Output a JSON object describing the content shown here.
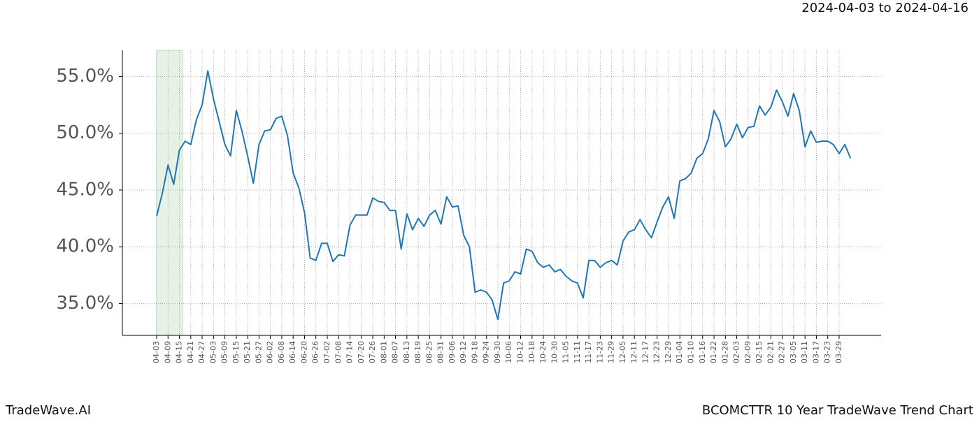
{
  "header": {
    "date_range": "2024-04-03 to 2024-04-16"
  },
  "footer": {
    "brand": "TradeWave.AI",
    "chart_name": "BCOMCTTR 10 Year TradeWave Trend Chart"
  },
  "chart_data": {
    "type": "line",
    "color": "#1f77b4",
    "grid": true,
    "shaded_span": {
      "start": "04-03",
      "end": "04-15",
      "color": "#e6f2e6"
    },
    "categories": [
      "04-03",
      null,
      "04-09",
      null,
      "04-15",
      null,
      "04-21",
      null,
      "04-27",
      null,
      "05-03",
      null,
      "05-09",
      null,
      "05-15",
      null,
      "05-21",
      null,
      "05-27",
      null,
      "06-02",
      null,
      "06-08",
      null,
      "06-14",
      null,
      "06-20",
      null,
      "06-26",
      null,
      "07-02",
      null,
      "07-08",
      null,
      "07-14",
      null,
      "07-20",
      null,
      "07-26",
      null,
      "08-01",
      null,
      "08-07",
      null,
      "08-13",
      null,
      "08-19",
      null,
      "08-25",
      null,
      "08-31",
      null,
      "09-06",
      null,
      "09-12",
      null,
      "09-18",
      null,
      "09-24",
      null,
      "09-30",
      null,
      "10-06",
      null,
      "10-12",
      null,
      "10-18",
      null,
      "10-24",
      null,
      "10-30",
      null,
      "11-05",
      null,
      "11-11",
      null,
      "11-17",
      null,
      "11-23",
      null,
      "11-29",
      null,
      "12-05",
      null,
      "12-11",
      null,
      "12-17",
      null,
      "12-23",
      null,
      "12-29",
      null,
      "01-04",
      null,
      "01-10",
      null,
      "01-16",
      null,
      "01-22",
      null,
      "01-28",
      null,
      "02-03",
      null,
      "02-09",
      null,
      "02-15",
      null,
      "02-21",
      null,
      "02-27",
      null,
      "03-05",
      null,
      "03-11",
      null,
      "03-17",
      null,
      "03-23",
      null,
      "03-29",
      null,
      null
    ],
    "values": [
      42.7,
      44.7,
      47.2,
      45.5,
      48.5,
      49.3,
      49.0,
      51.2,
      52.5,
      55.5,
      53.0,
      51.0,
      49.0,
      48.0,
      52.0,
      50.2,
      48.0,
      45.6,
      49.0,
      50.2,
      50.3,
      51.3,
      51.5,
      49.8,
      46.5,
      45.2,
      43.0,
      39.0,
      38.8,
      40.3,
      40.3,
      38.7,
      39.3,
      39.2,
      41.9,
      42.8,
      42.8,
      42.8,
      44.3,
      44.0,
      43.9,
      43.2,
      43.2,
      39.8,
      42.9,
      41.5,
      42.5,
      41.8,
      42.8,
      43.2,
      42.0,
      44.4,
      43.5,
      43.6,
      41.0,
      40.0,
      36.0,
      36.2,
      36.0,
      35.3,
      33.6,
      36.8,
      37.0,
      37.8,
      37.6,
      39.8,
      39.6,
      38.6,
      38.2,
      38.4,
      37.8,
      38.0,
      37.4,
      37.0,
      36.8,
      35.5,
      38.8,
      38.8,
      38.2,
      38.6,
      38.8,
      38.4,
      40.5,
      41.3,
      41.5,
      42.4,
      41.5,
      40.8,
      42.2,
      43.5,
      44.4,
      42.5,
      45.8,
      46.0,
      46.5,
      47.8,
      48.2,
      49.5,
      52.0,
      51.0,
      48.8,
      49.5,
      50.8,
      49.6,
      50.5,
      50.6,
      52.4,
      51.6,
      52.3,
      53.8,
      52.8,
      51.5,
      53.5,
      52.0,
      48.8,
      50.2,
      49.2,
      49.3,
      49.3,
      49.0,
      48.2,
      49.0,
      47.8
    ],
    "ylim": [
      32.2,
      57.3
    ],
    "yticks": [
      {
        "value": 35,
        "label": "35.0%"
      },
      {
        "value": 40,
        "label": "40.0%"
      },
      {
        "value": 45,
        "label": "45.0%"
      },
      {
        "value": 50,
        "label": "50.0%"
      },
      {
        "value": 55,
        "label": "55.0%"
      }
    ]
  }
}
